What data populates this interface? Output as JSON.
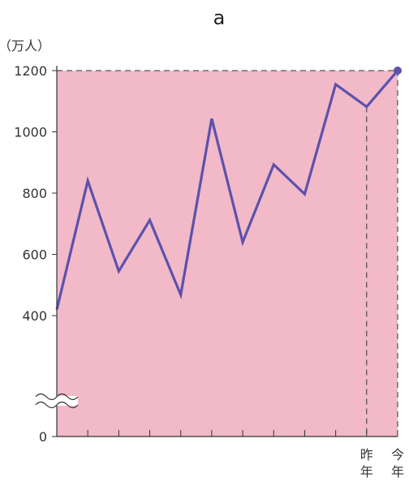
{
  "chart_data": {
    "type": "line",
    "title": "a",
    "unit_label": "（万人）",
    "yticks": [
      0,
      400,
      600,
      800,
      1000,
      1200
    ],
    "ylim": [
      0,
      1200
    ],
    "axis_break": true,
    "grid": false,
    "x_labels": [
      {
        "index": 11,
        "chars": [
          "昨",
          "年"
        ]
      },
      {
        "index": 12,
        "chars": [
          "今",
          "年"
        ]
      }
    ],
    "series": [
      {
        "values": [
          420,
          840,
          545,
          712,
          468,
          1043,
          640,
          893,
          797,
          1155,
          1082,
          1200
        ],
        "color": "#5a52ac"
      }
    ],
    "colors": {
      "plot_background": "#f2b9c8",
      "line": "#5a52ac",
      "axis": "#333333"
    }
  }
}
